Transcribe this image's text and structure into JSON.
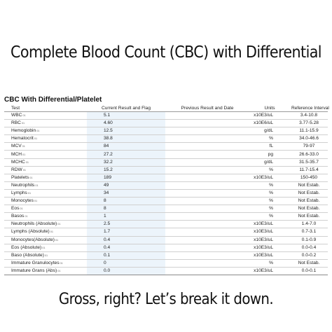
{
  "headline": "Complete Blood Count (CBC) with Differential",
  "section_title": "CBC With Differential/Platelet",
  "columns": [
    "Test",
    "Current Result and Flag",
    "Previous Result and Date",
    "Units",
    "Reference Interval"
  ],
  "footnote_marker": "01",
  "rows": [
    {
      "test": "WBC",
      "current": "5.1",
      "previous": "",
      "units": "x10E3/uL",
      "reference": "3.4-10.8"
    },
    {
      "test": "RBC",
      "current": "4.60",
      "previous": "",
      "units": "x10E6/uL",
      "reference": "3.77-5.28"
    },
    {
      "test": "Hemoglobin",
      "current": "12.5",
      "previous": "",
      "units": "g/dL",
      "reference": "11.1-15.9"
    },
    {
      "test": "Hematocrit",
      "current": "38.8",
      "previous": "",
      "units": "%",
      "reference": "34.0-46.6"
    },
    {
      "test": "MCV",
      "current": "84",
      "previous": "",
      "units": "fL",
      "reference": "79-97"
    },
    {
      "test": "MCH",
      "current": "27.2",
      "previous": "",
      "units": "pg",
      "reference": "26.6-33.0"
    },
    {
      "test": "MCHC",
      "current": "32.2",
      "previous": "",
      "units": "g/dL",
      "reference": "31.5-35.7"
    },
    {
      "test": "RDW",
      "current": "15.2",
      "previous": "",
      "units": "%",
      "reference": "11.7-15.4"
    },
    {
      "test": "Platelets",
      "current": "189",
      "previous": "",
      "units": "x10E3/uL",
      "reference": "150-450"
    },
    {
      "test": "Neutrophils",
      "current": "49",
      "previous": "",
      "units": "%",
      "reference": "Not Estab."
    },
    {
      "test": "Lymphs",
      "current": "34",
      "previous": "",
      "units": "%",
      "reference": "Not Estab."
    },
    {
      "test": "Monocytes",
      "current": "8",
      "previous": "",
      "units": "%",
      "reference": "Not Estab."
    },
    {
      "test": "Eos",
      "current": "8",
      "previous": "",
      "units": "%",
      "reference": "Not Estab."
    },
    {
      "test": "Basos",
      "current": "1",
      "previous": "",
      "units": "%",
      "reference": "Not Estab."
    },
    {
      "test": "Neutrophils (Absolute)",
      "current": "2.5",
      "previous": "",
      "units": "x10E3/uL",
      "reference": "1.4-7.0"
    },
    {
      "test": "Lymphs (Absolute)",
      "current": "1.7",
      "previous": "",
      "units": "x10E3/uL",
      "reference": "0.7-3.1"
    },
    {
      "test": "Monocytes(Absolute)",
      "current": "0.4",
      "previous": "",
      "units": "x10E3/uL",
      "reference": "0.1-0.9"
    },
    {
      "test": "Eos (Absolute)",
      "current": "0.4",
      "previous": "",
      "units": "x10E3/uL",
      "reference": "0.0-0.4"
    },
    {
      "test": "Baso (Absolute)",
      "current": "0.1",
      "previous": "",
      "units": "x10E3/uL",
      "reference": "0.0-0.2"
    },
    {
      "test": "Immature Granulocytes",
      "current": "0",
      "previous": "",
      "units": "%",
      "reference": "Not Estab."
    },
    {
      "test": "Immature Grans (Abs)",
      "current": "0.0",
      "previous": "",
      "units": "x10E3/uL",
      "reference": "0.0-0.1"
    }
  ],
  "caption": "Gross, right? Let’s break it down.",
  "colors": {
    "current_column_bg": "#ecf4fb",
    "text": "#111111"
  }
}
